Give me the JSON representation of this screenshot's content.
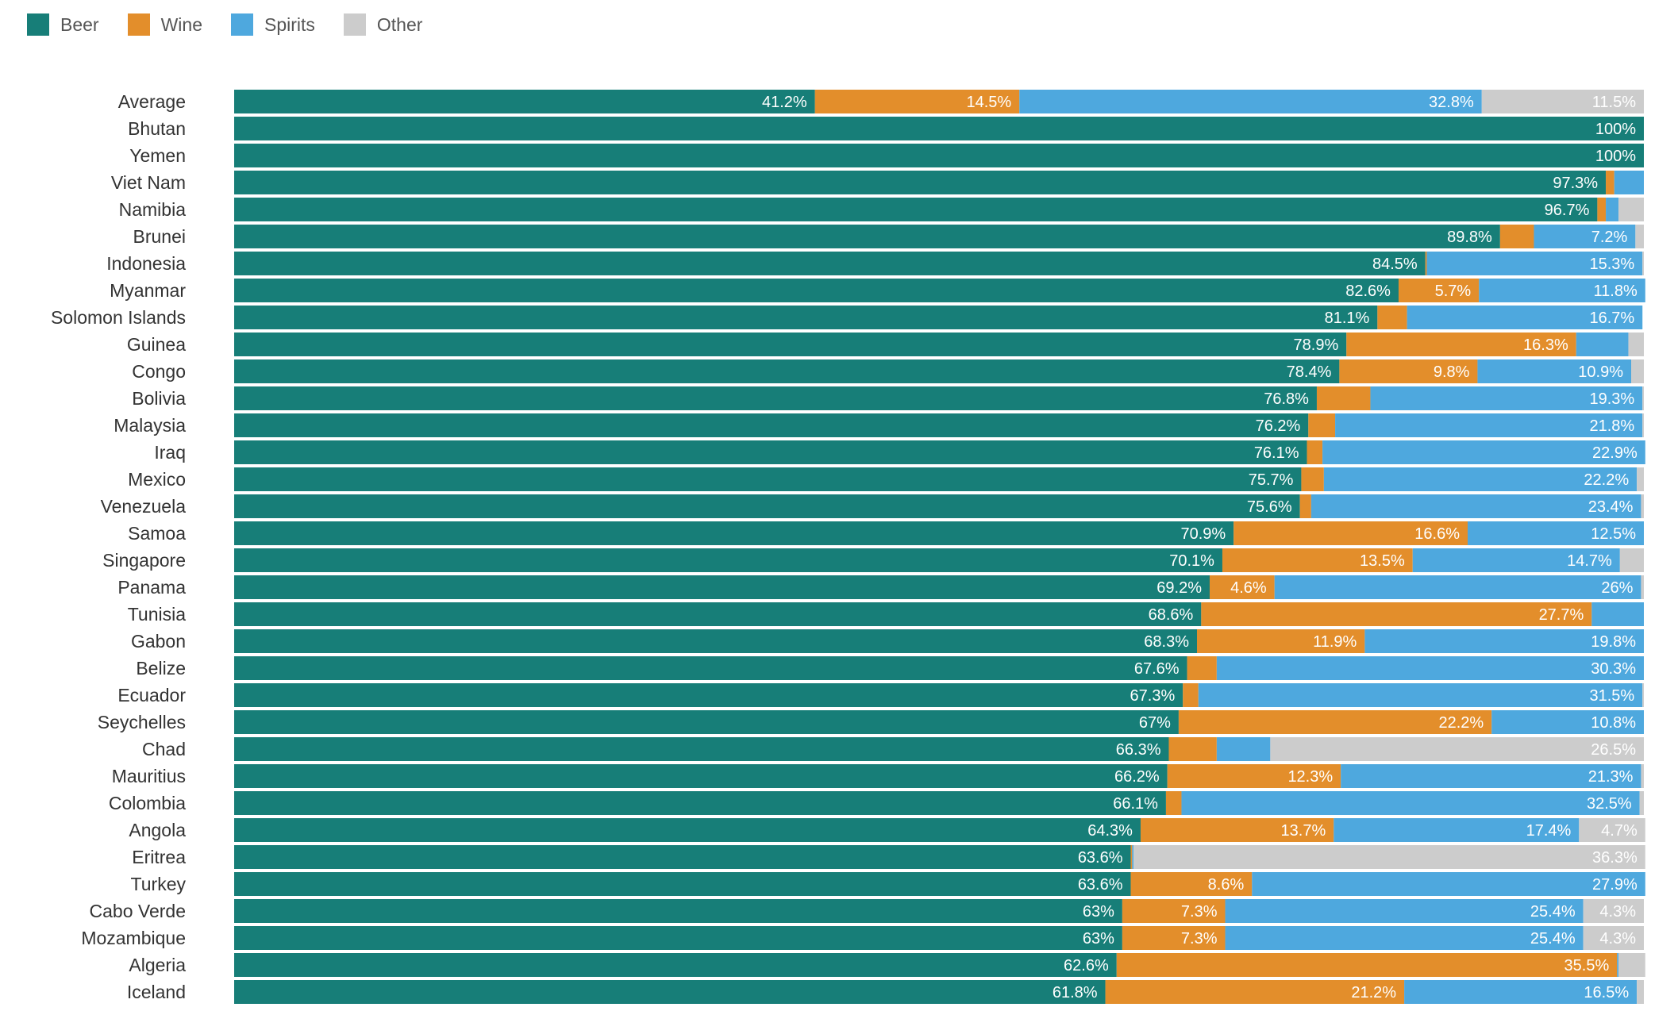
{
  "legend": [
    {
      "name": "Beer",
      "color": "#177e78"
    },
    {
      "name": "Wine",
      "color": "#e38e2b"
    },
    {
      "name": "Spirits",
      "color": "#4ea8de"
    },
    {
      "name": "Other",
      "color": "#cccccc"
    }
  ],
  "chart_data": {
    "type": "bar",
    "orientation": "horizontal",
    "stacked": true,
    "normalized_to": 100,
    "title": "",
    "xlabel": "",
    "ylabel": "",
    "xlim": [
      0,
      100
    ],
    "categories": [
      "Average",
      "Bhutan",
      "Yemen",
      "Viet Nam",
      "Namibia",
      "Brunei",
      "Indonesia",
      "Myanmar",
      "Solomon Islands",
      "Guinea",
      "Congo",
      "Bolivia",
      "Malaysia",
      "Iraq",
      "Mexico",
      "Venezuela",
      "Samoa",
      "Singapore",
      "Panama",
      "Tunisia",
      "Gabon",
      "Belize",
      "Ecuador",
      "Seychelles",
      "Chad",
      "Mauritius",
      "Colombia",
      "Angola",
      "Eritrea",
      "Turkey",
      "Cabo Verde",
      "Mozambique",
      "Algeria",
      "Iceland"
    ],
    "series": [
      {
        "name": "Beer",
        "values": [
          41.2,
          100,
          100,
          97.3,
          96.7,
          89.8,
          84.5,
          82.6,
          81.1,
          78.9,
          78.4,
          76.8,
          76.2,
          76.1,
          75.7,
          75.6,
          70.9,
          70.1,
          69.2,
          68.6,
          68.3,
          67.6,
          67.3,
          67,
          66.3,
          66.2,
          66.1,
          64.3,
          63.6,
          63.6,
          63,
          63,
          62.6,
          61.8
        ],
        "labels": [
          "41.2%",
          "100%",
          "100%",
          "97.3%",
          "96.7%",
          "89.8%",
          "84.5%",
          "82.6%",
          "81.1%",
          "78.9%",
          "78.4%",
          "76.8%",
          "76.2%",
          "76.1%",
          "75.7%",
          "75.6%",
          "70.9%",
          "70.1%",
          "69.2%",
          "68.6%",
          "68.3%",
          "67.6%",
          "67.3%",
          "67%",
          "66.3%",
          "66.2%",
          "66.1%",
          "64.3%",
          "63.6%",
          "63.6%",
          "63%",
          "63%",
          "62.6%",
          "61.8%"
        ]
      },
      {
        "name": "Wine",
        "values": [
          14.5,
          0,
          0,
          0.6,
          0.6,
          2.4,
          0.1,
          5.7,
          2.1,
          16.3,
          9.8,
          3.8,
          1.9,
          1.1,
          1.6,
          0.8,
          16.6,
          13.5,
          4.6,
          27.7,
          11.9,
          2.1,
          1.1,
          22.2,
          3.4,
          12.3,
          1.1,
          13.7,
          0.1,
          8.6,
          7.3,
          7.3,
          35.5,
          21.2
        ],
        "labels": [
          "14.5%",
          "",
          "",
          "",
          "",
          "",
          "",
          "5.7%",
          "",
          "16.3%",
          "9.8%",
          "",
          "",
          "",
          "",
          "",
          "16.6%",
          "13.5%",
          "4.6%",
          "27.7%",
          "11.9%",
          "",
          "",
          "22.2%",
          "",
          "12.3%",
          "",
          "13.7%",
          "",
          "8.6%",
          "7.3%",
          "7.3%",
          "35.5%",
          "21.2%"
        ]
      },
      {
        "name": "Spirits",
        "values": [
          32.8,
          0,
          0,
          2.1,
          0.9,
          7.2,
          15.3,
          11.8,
          16.7,
          3.7,
          10.9,
          19.3,
          21.8,
          22.9,
          22.2,
          23.4,
          12.5,
          14.7,
          26,
          3.7,
          19.8,
          30.3,
          31.5,
          10.8,
          3.8,
          21.3,
          32.5,
          17.4,
          0.1,
          27.9,
          25.4,
          25.4,
          0.1,
          16.5
        ],
        "labels": [
          "32.8%",
          "",
          "",
          "",
          "",
          "7.2%",
          "15.3%",
          "11.8%",
          "16.7%",
          "",
          "10.9%",
          "19.3%",
          "21.8%",
          "22.9%",
          "22.2%",
          "23.4%",
          "12.5%",
          "14.7%",
          "26%",
          "",
          "19.8%",
          "30.3%",
          "31.5%",
          "10.8%",
          "",
          "21.3%",
          "32.5%",
          "17.4%",
          "",
          "27.9%",
          "25.4%",
          "25.4%",
          "",
          "16.5%"
        ]
      },
      {
        "name": "Other",
        "values": [
          11.5,
          0,
          0,
          0,
          1.8,
          0.6,
          0.1,
          0,
          0,
          1.1,
          0.9,
          0.1,
          0.1,
          0,
          0.5,
          0.2,
          0,
          1.7,
          0.2,
          0,
          0,
          0,
          0.1,
          0,
          26.5,
          0.2,
          0.3,
          4.7,
          36.3,
          0,
          4.3,
          4.3,
          1.9,
          0.5
        ],
        "labels": [
          "11.5%",
          "",
          "",
          "",
          "",
          "",
          "",
          "",
          "",
          "",
          "",
          "",
          "",
          "",
          "",
          "",
          "",
          "",
          "",
          "",
          "",
          "",
          "",
          "",
          "26.5%",
          "",
          "",
          "4.7%",
          "36.3%",
          "",
          "4.3%",
          "4.3%",
          "",
          " "
        ]
      }
    ]
  }
}
